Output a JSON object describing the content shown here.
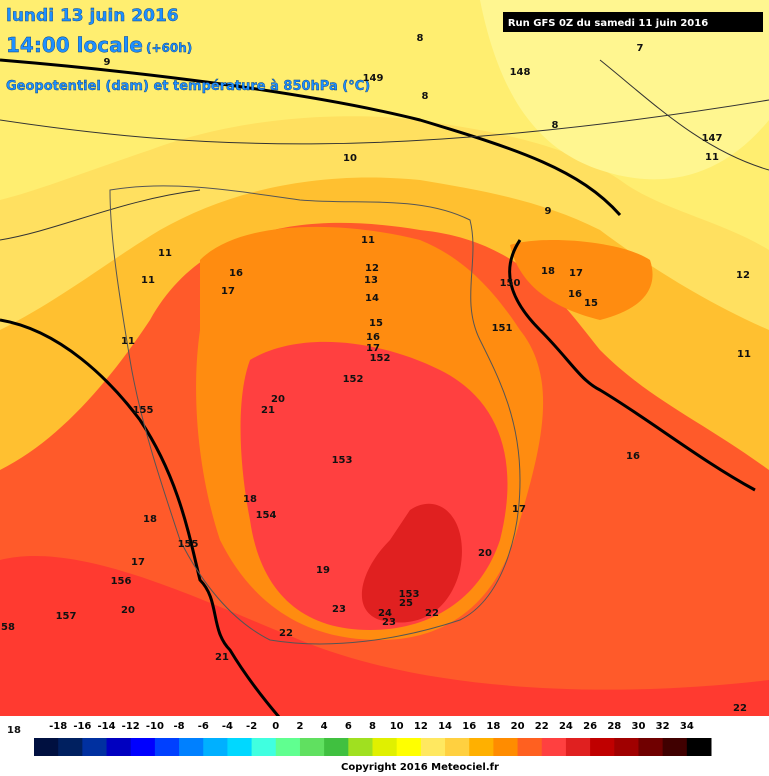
{
  "header": {
    "date": "lundi 13 juin 2016",
    "time": "14:00 locale",
    "lead": "(+60h)",
    "field": "Geopotentiel (dam) et température à 850hPa (°C)",
    "run": "Run GFS 0Z du samedi 11 juin 2016"
  },
  "map": {
    "labels": [
      "8",
      "7",
      "148",
      "149",
      "9",
      "8",
      "8",
      "147",
      "11",
      "10",
      "9",
      "11",
      "11",
      "11",
      "16",
      "17",
      "12",
      "13",
      "14",
      "18",
      "17",
      "16",
      "15",
      "150",
      "12",
      "15",
      "16",
      "17",
      "152",
      "151",
      "11",
      "11",
      "152",
      "20",
      "21",
      "155",
      "153",
      "16",
      "18",
      "154",
      "18",
      "17",
      "155",
      "20",
      "17",
      "19",
      "156",
      "153",
      "25",
      "20",
      "23",
      "24",
      "23",
      "22",
      "157",
      "22",
      "21",
      "58",
      "22",
      "18"
    ]
  },
  "legend": {
    "ticks": [
      -18,
      -16,
      -14,
      -12,
      -10,
      -8,
      -6,
      -4,
      -2,
      0,
      2,
      4,
      6,
      8,
      10,
      12,
      14,
      16,
      18,
      20,
      22,
      24,
      26,
      28,
      30,
      32,
      34
    ],
    "colors": [
      "#001040",
      "#002060",
      "#0030a0",
      "#0000c0",
      "#0000ff",
      "#0040ff",
      "#0080ff",
      "#00b0ff",
      "#00d8ff",
      "#40ffe0",
      "#60ff90",
      "#60e060",
      "#40c040",
      "#a0e020",
      "#e0f000",
      "#ffff00",
      "#ffe860",
      "#ffd040",
      "#ffb000",
      "#ff8c00",
      "#ff6020",
      "#ff4040",
      "#e02020",
      "#c00000",
      "#a00000",
      "#700000",
      "#400000",
      "#000000"
    ]
  },
  "footer": {
    "copyright": "Copyright 2016 Meteociel.fr"
  }
}
